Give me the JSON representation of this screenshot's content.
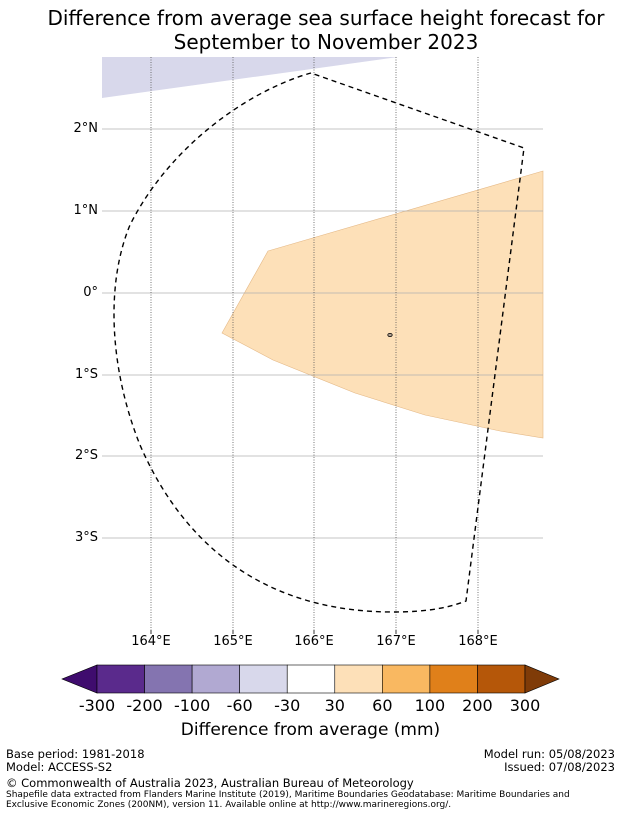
{
  "title": {
    "line1": "Difference from average sea surface height forecast for",
    "line2": "September to November 2023"
  },
  "map": {
    "lat_labels": [
      "2°N",
      "1°N",
      "0°",
      "1°S",
      "2°S",
      "3°S"
    ],
    "lon_labels": [
      "164°E",
      "165°E",
      "166°E",
      "167°E",
      "168°E"
    ],
    "colors": {
      "positive_30_60": "#fde0b8",
      "negative_60_30": "#d8d8eb",
      "gridline": "#b0b0b0",
      "boundary": "#000000"
    }
  },
  "colorbar": {
    "ticks": [
      "-300",
      "-200",
      "-100",
      "-60",
      "-30",
      "30",
      "60",
      "100",
      "200",
      "300"
    ],
    "colors": [
      "#3f0c6e",
      "#5a2a8c",
      "#8474b0",
      "#b1a9d2",
      "#d8d8eb",
      "#ffffff",
      "#fde0b8",
      "#f9b861",
      "#e0801a",
      "#b55709",
      "#7f3b08"
    ],
    "label": "Difference from average (mm)"
  },
  "footer": {
    "base_period": "Base period: 1981-2018",
    "model": "Model: ACCESS-S2",
    "model_run": "Model run: 05/08/2023",
    "issued": "Issued: 07/08/2023",
    "copyright": "© Commonwealth of Australia 2023, Australian Bureau of Meteorology",
    "shapefile_line1": "Shapefile data extracted from Flanders Marine Institute (2019), Maritime Boundaries Geodatabase: Maritime Boundaries and",
    "shapefile_line2": "Exclusive Economic Zones (200NM), version 11. Available online at http://www.marineregions.org/."
  }
}
